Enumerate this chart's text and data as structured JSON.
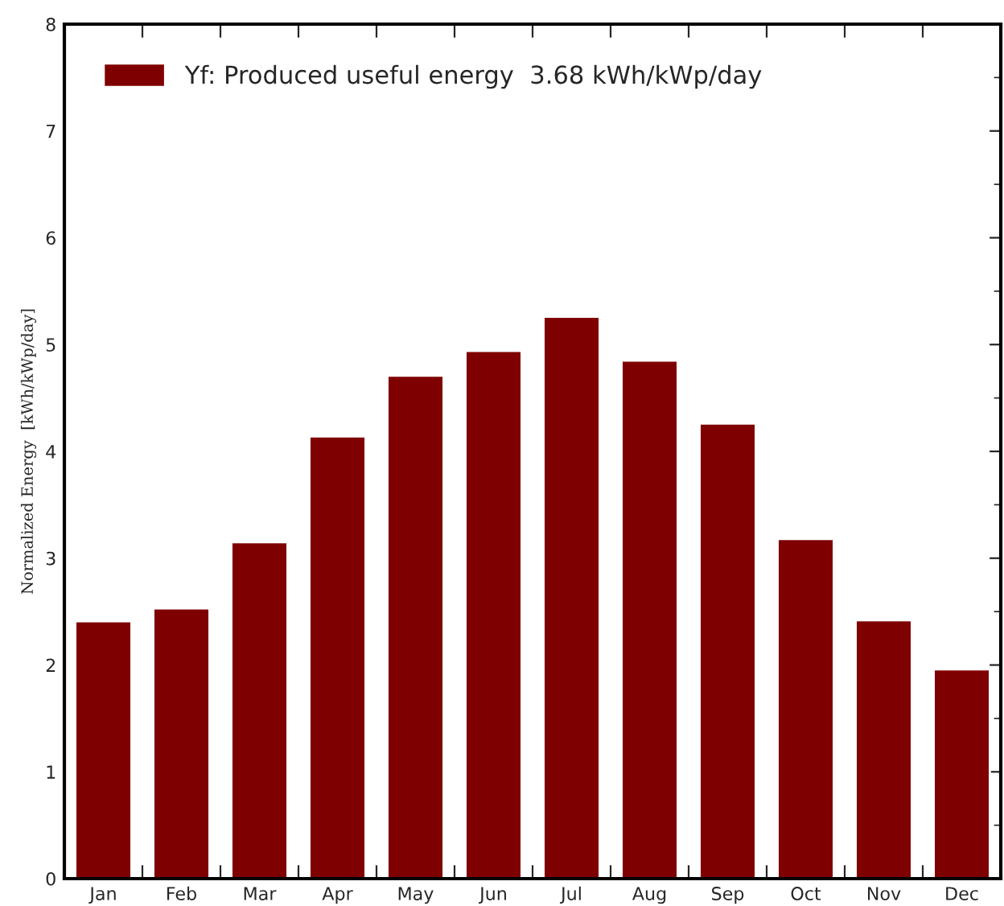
{
  "chart_data": {
    "type": "bar",
    "ylabel": "Normalized Energy  [kWh/kWp/day]",
    "categories": [
      "Jan",
      "Feb",
      "Mar",
      "Apr",
      "May",
      "Jun",
      "Jul",
      "Aug",
      "Sep",
      "Oct",
      "Nov",
      "Dec"
    ],
    "series": [
      {
        "name": "Yf: Produced useful energy  3.68 kWh/kWp/day",
        "color": "#7f0000",
        "values": [
          2.41,
          2.53,
          3.15,
          4.14,
          4.71,
          4.94,
          5.26,
          4.85,
          4.26,
          3.18,
          2.42,
          1.96
        ]
      }
    ],
    "ylim": [
      0,
      8
    ],
    "yticks": [
      0,
      1,
      2,
      3,
      4,
      5,
      6,
      7,
      8
    ],
    "grid": false,
    "legend": "top left"
  }
}
